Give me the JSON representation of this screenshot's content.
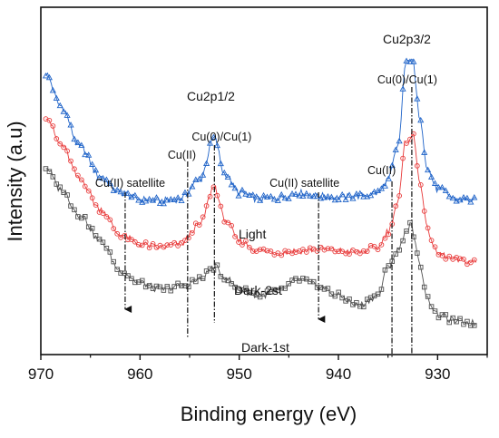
{
  "chart_data": {
    "type": "line",
    "title": "",
    "xlabel": "Binding energy (eV)",
    "ylabel": "Intensity (a.u)",
    "xlim": [
      970,
      925
    ],
    "x_reversed": true,
    "xticks": [
      "970",
      "960",
      "950",
      "940",
      "930"
    ],
    "xtick_values": [
      970,
      960,
      950,
      940,
      930
    ],
    "y_ticks_shown": false,
    "grid": false,
    "series": [
      {
        "name": "Light",
        "color": "#1f63c8",
        "marker": "triangle",
        "points": [
          [
            969.5,
            0.85
          ],
          [
            968,
            0.75
          ],
          [
            966,
            0.62
          ],
          [
            964,
            0.53
          ],
          [
            962,
            0.48
          ],
          [
            960,
            0.46
          ],
          [
            958,
            0.455
          ],
          [
            956,
            0.46
          ],
          [
            954,
            0.52
          ],
          [
            952.5,
            0.65
          ],
          [
            951.5,
            0.54
          ],
          [
            950,
            0.48
          ],
          [
            948,
            0.46
          ],
          [
            946,
            0.465
          ],
          [
            944,
            0.48
          ],
          [
            942,
            0.47
          ],
          [
            940,
            0.465
          ],
          [
            938,
            0.47
          ],
          [
            936,
            0.48
          ],
          [
            935,
            0.52
          ],
          [
            934,
            0.62
          ],
          [
            933.2,
            0.88
          ],
          [
            932.6,
            0.9
          ],
          [
            931.8,
            0.72
          ],
          [
            931,
            0.55
          ],
          [
            930,
            0.49
          ],
          [
            928,
            0.46
          ],
          [
            926,
            0.455
          ]
        ]
      },
      {
        "name": "Dark-2st",
        "color": "#e83a3a",
        "marker": "circle",
        "points": [
          [
            969.5,
            0.72
          ],
          [
            968,
            0.63
          ],
          [
            966,
            0.52
          ],
          [
            964,
            0.43
          ],
          [
            962,
            0.35
          ],
          [
            960,
            0.32
          ],
          [
            958,
            0.31
          ],
          [
            956,
            0.32
          ],
          [
            954,
            0.38
          ],
          [
            952.5,
            0.5
          ],
          [
            951.5,
            0.4
          ],
          [
            950,
            0.33
          ],
          [
            948,
            0.3
          ],
          [
            946,
            0.295
          ],
          [
            944,
            0.3
          ],
          [
            942,
            0.305
          ],
          [
            940,
            0.3
          ],
          [
            938,
            0.295
          ],
          [
            936,
            0.31
          ],
          [
            935,
            0.36
          ],
          [
            934,
            0.45
          ],
          [
            933.2,
            0.64
          ],
          [
            932.5,
            0.66
          ],
          [
            931.8,
            0.52
          ],
          [
            931,
            0.36
          ],
          [
            930,
            0.29
          ],
          [
            928,
            0.27
          ],
          [
            926,
            0.265
          ]
        ]
      },
      {
        "name": "Dark-1st",
        "color": "#505050",
        "marker": "square",
        "points": [
          [
            969.5,
            0.56
          ],
          [
            968,
            0.49
          ],
          [
            966,
            0.41
          ],
          [
            964,
            0.33
          ],
          [
            962,
            0.24
          ],
          [
            960,
            0.2
          ],
          [
            958,
            0.18
          ],
          [
            956,
            0.19
          ],
          [
            954,
            0.21
          ],
          [
            952.5,
            0.25
          ],
          [
            951.5,
            0.22
          ],
          [
            950,
            0.18
          ],
          [
            948,
            0.16
          ],
          [
            946,
            0.175
          ],
          [
            944,
            0.21
          ],
          [
            942,
            0.19
          ],
          [
            940,
            0.16
          ],
          [
            938,
            0.13
          ],
          [
            936,
            0.16
          ],
          [
            935,
            0.25
          ],
          [
            934,
            0.3
          ],
          [
            933.2,
            0.36
          ],
          [
            932.7,
            0.38
          ],
          [
            931.8,
            0.26
          ],
          [
            931,
            0.15
          ],
          [
            930,
            0.1
          ],
          [
            928,
            0.08
          ],
          [
            926,
            0.075
          ]
        ]
      }
    ],
    "reference_lines": [
      {
        "x": 961.5,
        "style": "dash-dot",
        "arrow": true,
        "label": "Cu(II) satellite"
      },
      {
        "x": 955.2,
        "style": "dash-dot",
        "arrow": false,
        "label": "Cu(II)"
      },
      {
        "x": 952.5,
        "style": "dash-dot",
        "arrow": false,
        "label": "Cu(0)/Cu(1)"
      },
      {
        "x": 942.0,
        "style": "dash-dot",
        "arrow": true,
        "label": "Cu(II) satellite"
      },
      {
        "x": 934.6,
        "style": "dash-dot",
        "arrow": false,
        "label": "Cu(II)"
      },
      {
        "x": 932.6,
        "style": "dash-dot",
        "arrow": false,
        "label": "Cu(0)/Cu(1)"
      }
    ],
    "annotations": [
      {
        "text": "Cu2p1/2"
      },
      {
        "text": "Cu2p3/2"
      }
    ]
  }
}
